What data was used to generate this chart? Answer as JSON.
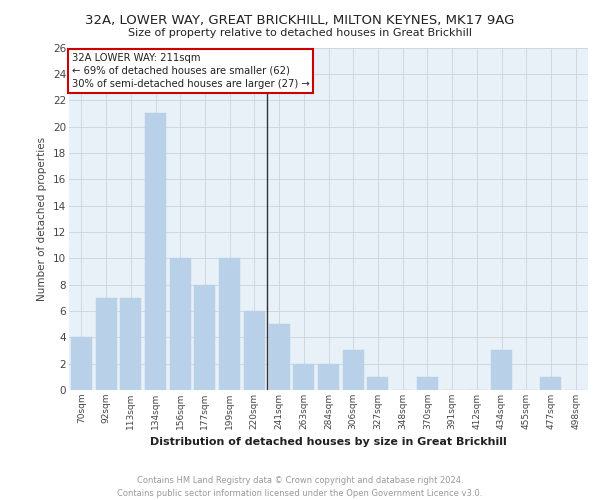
{
  "title1": "32A, LOWER WAY, GREAT BRICKHILL, MILTON KEYNES, MK17 9AG",
  "title2": "Size of property relative to detached houses in Great Brickhill",
  "xlabel": "Distribution of detached houses by size in Great Brickhill",
  "ylabel": "Number of detached properties",
  "categories": [
    "70sqm",
    "92sqm",
    "113sqm",
    "134sqm",
    "156sqm",
    "177sqm",
    "199sqm",
    "220sqm",
    "241sqm",
    "263sqm",
    "284sqm",
    "306sqm",
    "327sqm",
    "348sqm",
    "370sqm",
    "391sqm",
    "412sqm",
    "434sqm",
    "455sqm",
    "477sqm",
    "498sqm"
  ],
  "values": [
    4,
    7,
    7,
    21,
    10,
    8,
    10,
    6,
    5,
    2,
    2,
    3,
    1,
    0,
    1,
    0,
    0,
    3,
    0,
    1,
    0
  ],
  "bar_color": "#b8d0e8",
  "bar_edgecolor": "#b8d0e8",
  "vline_index": 7.5,
  "vline_color": "#333333",
  "annotation_text": "32A LOWER WAY: 211sqm\n← 69% of detached houses are smaller (62)\n30% of semi-detached houses are larger (27) →",
  "annotation_box_edgecolor": "#cc0000",
  "annotation_box_facecolor": "#ffffff",
  "ylim": [
    0,
    26
  ],
  "yticks": [
    0,
    2,
    4,
    6,
    8,
    10,
    12,
    14,
    16,
    18,
    20,
    22,
    24,
    26
  ],
  "grid_color": "#c8d4e0",
  "background_color": "#e8f0f8",
  "footer_text": "Contains HM Land Registry data © Crown copyright and database right 2024.\nContains public sector information licensed under the Open Government Licence v3.0.",
  "footer_color": "#999999"
}
